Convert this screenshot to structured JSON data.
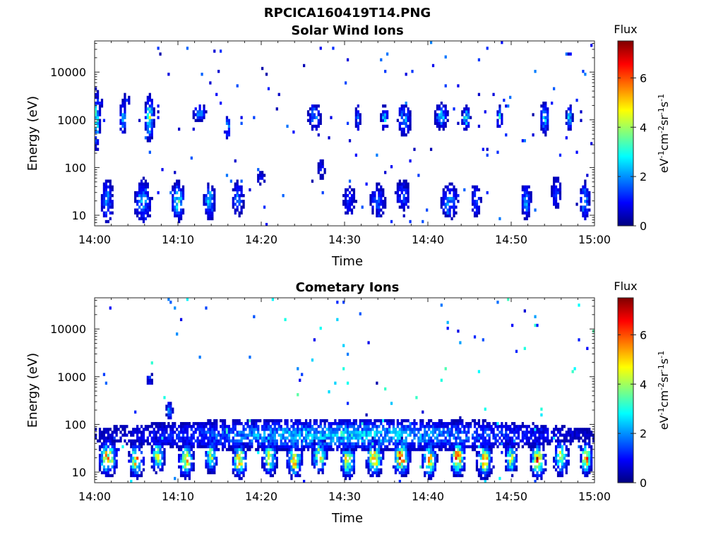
{
  "figure": {
    "filename": "RPCICA160419T14.PNG"
  },
  "colormap": {
    "name": "jet",
    "stops": [
      "#00007f",
      "#0000ff",
      "#007fff",
      "#00ffff",
      "#7fff7f",
      "#ffff00",
      "#ff7f00",
      "#ff0000",
      "#7f0000"
    ]
  },
  "chart_data": [
    {
      "type": "heatmap",
      "title": "Solar Wind Ions",
      "xlabel": "Time",
      "ylabel": "Energy (eV)",
      "x_ticks": [
        "14:00",
        "14:10",
        "14:20",
        "14:30",
        "14:40",
        "14:50",
        "15:00"
      ],
      "x_tick_minutes": [
        0,
        10,
        20,
        30,
        40,
        50,
        60
      ],
      "xlim_minutes": [
        0,
        60
      ],
      "y_scale": "log",
      "ylim": [
        6,
        45000
      ],
      "y_ticks": [
        10,
        100,
        1000,
        10000
      ],
      "y_tick_labels": [
        "10",
        "100",
        "1000",
        "10000"
      ],
      "colorbar": {
        "title": "Flux",
        "label": "eV-1cm-2sr-1s-1",
        "range": [
          0,
          7.5
        ],
        "ticks": [
          0,
          2,
          4,
          6
        ],
        "tick_labels": [
          "0",
          "2",
          "4",
          "6"
        ]
      },
      "bursts": [
        {
          "t": 0.2,
          "w": 0.8,
          "e": 1000,
          "s": 0.45,
          "f": 3.8
        },
        {
          "t": 0.6,
          "w": 1.2,
          "e": 2300,
          "s": 0.1,
          "f": 1.0
        },
        {
          "t": 1.5,
          "w": 1.5,
          "e": 20,
          "s": 0.35,
          "f": 2.2
        },
        {
          "t": 3.4,
          "w": 0.8,
          "e": 1100,
          "s": 0.25,
          "f": 2.8
        },
        {
          "t": 3.8,
          "w": 1.0,
          "e": 2600,
          "s": 0.12,
          "f": 1.3
        },
        {
          "t": 6.6,
          "w": 1.0,
          "e": 1100,
          "s": 0.35,
          "f": 3.6
        },
        {
          "t": 5.8,
          "w": 2.0,
          "e": 20,
          "s": 0.35,
          "f": 2.4
        },
        {
          "t": 10.0,
          "w": 1.5,
          "e": 20,
          "s": 0.3,
          "f": 3.2
        },
        {
          "t": 12.6,
          "w": 1.6,
          "e": 1400,
          "s": 0.15,
          "f": 2.0
        },
        {
          "t": 13.8,
          "w": 1.3,
          "e": 20,
          "s": 0.3,
          "f": 2.8
        },
        {
          "t": 16.0,
          "w": 0.6,
          "e": 700,
          "s": 0.2,
          "f": 2.6
        },
        {
          "t": 17.2,
          "w": 1.5,
          "e": 22,
          "s": 0.3,
          "f": 1.8
        },
        {
          "t": 20.0,
          "w": 1.5,
          "e": 60,
          "s": 0.15,
          "f": 1.0
        },
        {
          "t": 27.2,
          "w": 1.2,
          "e": 90,
          "s": 0.2,
          "f": 1.0
        },
        {
          "t": 26.4,
          "w": 1.6,
          "e": 1200,
          "s": 0.25,
          "f": 2.0
        },
        {
          "t": 30.6,
          "w": 1.8,
          "e": 20,
          "s": 0.3,
          "f": 1.2
        },
        {
          "t": 31.6,
          "w": 0.6,
          "e": 1100,
          "s": 0.2,
          "f": 2.6
        },
        {
          "t": 34.0,
          "w": 2.0,
          "e": 20,
          "s": 0.3,
          "f": 1.6
        },
        {
          "t": 34.8,
          "w": 0.8,
          "e": 1100,
          "s": 0.2,
          "f": 2.8
        },
        {
          "t": 37.2,
          "w": 1.5,
          "e": 1000,
          "s": 0.25,
          "f": 2.5
        },
        {
          "t": 37.0,
          "w": 2.0,
          "e": 25,
          "s": 0.3,
          "f": 1.4
        },
        {
          "t": 41.6,
          "w": 1.5,
          "e": 1200,
          "s": 0.2,
          "f": 2.8
        },
        {
          "t": 42.6,
          "w": 2.0,
          "e": 20,
          "s": 0.3,
          "f": 2.2
        },
        {
          "t": 44.6,
          "w": 1.0,
          "e": 1100,
          "s": 0.2,
          "f": 2.8
        },
        {
          "t": 45.8,
          "w": 1.2,
          "e": 20,
          "s": 0.3,
          "f": 1.6
        },
        {
          "t": 48.6,
          "w": 0.6,
          "e": 1100,
          "s": 0.2,
          "f": 2.8
        },
        {
          "t": 51.8,
          "w": 1.2,
          "e": 20,
          "s": 0.3,
          "f": 2.2
        },
        {
          "t": 54.0,
          "w": 1.0,
          "e": 1100,
          "s": 0.25,
          "f": 3.0
        },
        {
          "t": 55.4,
          "w": 1.3,
          "e": 30,
          "s": 0.3,
          "f": 1.4
        },
        {
          "t": 57.0,
          "w": 0.8,
          "e": 1100,
          "s": 0.2,
          "f": 2.6
        },
        {
          "t": 58.8,
          "w": 1.2,
          "e": 20,
          "s": 0.3,
          "f": 2.6
        }
      ],
      "scatter": {
        "count": 150,
        "seed": 17,
        "f_max": 1.6
      }
    },
    {
      "type": "heatmap",
      "title": "Cometary Ions",
      "xlabel": "Time",
      "ylabel": "Energy (eV)",
      "x_ticks": [
        "14:00",
        "14:10",
        "14:20",
        "14:30",
        "14:40",
        "14:50",
        "15:00"
      ],
      "x_tick_minutes": [
        0,
        10,
        20,
        30,
        40,
        50,
        60
      ],
      "xlim_minutes": [
        0,
        60
      ],
      "y_scale": "log",
      "ylim": [
        6,
        45000
      ],
      "y_ticks": [
        10,
        100,
        1000,
        10000
      ],
      "y_tick_labels": [
        "10",
        "100",
        "1000",
        "10000"
      ],
      "colorbar": {
        "title": "Flux",
        "label": "eV-1cm-2sr-1s-1",
        "range": [
          0,
          7.5
        ],
        "ticks": [
          0,
          2,
          4,
          6
        ],
        "tick_labels": [
          "0",
          "2",
          "4",
          "6"
        ]
      },
      "bursts": [
        {
          "t": 1.6,
          "w": 2.0,
          "e": 20,
          "s": 0.25,
          "f": 5.8
        },
        {
          "t": 5.0,
          "w": 1.6,
          "e": 18,
          "s": 0.25,
          "f": 5.2
        },
        {
          "t": 7.6,
          "w": 1.4,
          "e": 22,
          "s": 0.25,
          "f": 4.6
        },
        {
          "t": 11.0,
          "w": 1.6,
          "e": 18,
          "s": 0.25,
          "f": 5.6
        },
        {
          "t": 14.0,
          "w": 1.4,
          "e": 22,
          "s": 0.25,
          "f": 4.4
        },
        {
          "t": 17.4,
          "w": 1.6,
          "e": 18,
          "s": 0.25,
          "f": 6.0
        },
        {
          "t": 21.0,
          "w": 1.6,
          "e": 20,
          "s": 0.25,
          "f": 4.8
        },
        {
          "t": 24.0,
          "w": 1.6,
          "e": 18,
          "s": 0.25,
          "f": 5.8
        },
        {
          "t": 27.0,
          "w": 1.6,
          "e": 22,
          "s": 0.25,
          "f": 5.0
        },
        {
          "t": 30.4,
          "w": 1.6,
          "e": 18,
          "s": 0.25,
          "f": 5.6
        },
        {
          "t": 33.6,
          "w": 1.8,
          "e": 20,
          "s": 0.25,
          "f": 6.2
        },
        {
          "t": 36.8,
          "w": 1.8,
          "e": 20,
          "s": 0.25,
          "f": 6.4
        },
        {
          "t": 40.2,
          "w": 1.6,
          "e": 18,
          "s": 0.25,
          "f": 5.4
        },
        {
          "t": 43.6,
          "w": 1.6,
          "e": 20,
          "s": 0.25,
          "f": 6.4
        },
        {
          "t": 46.8,
          "w": 1.6,
          "e": 18,
          "s": 0.25,
          "f": 6.0
        },
        {
          "t": 50.0,
          "w": 1.4,
          "e": 20,
          "s": 0.25,
          "f": 4.4
        },
        {
          "t": 53.2,
          "w": 1.6,
          "e": 18,
          "s": 0.25,
          "f": 6.2
        },
        {
          "t": 56.0,
          "w": 1.6,
          "e": 20,
          "s": 0.25,
          "f": 5.0
        },
        {
          "t": 59.0,
          "w": 1.2,
          "e": 20,
          "s": 0.25,
          "f": 6.0
        },
        {
          "t": 30.0,
          "w": 58.0,
          "e": 60,
          "s": 0.25,
          "f": 2.6
        },
        {
          "t": 6.6,
          "w": 0.8,
          "e": 900,
          "s": 0.15,
          "f": 1.2
        },
        {
          "t": 9.0,
          "w": 0.8,
          "e": 200,
          "s": 0.15,
          "f": 2.4
        }
      ],
      "scatter": {
        "count": 120,
        "seed": 29,
        "f_max": 3.2
      }
    }
  ]
}
